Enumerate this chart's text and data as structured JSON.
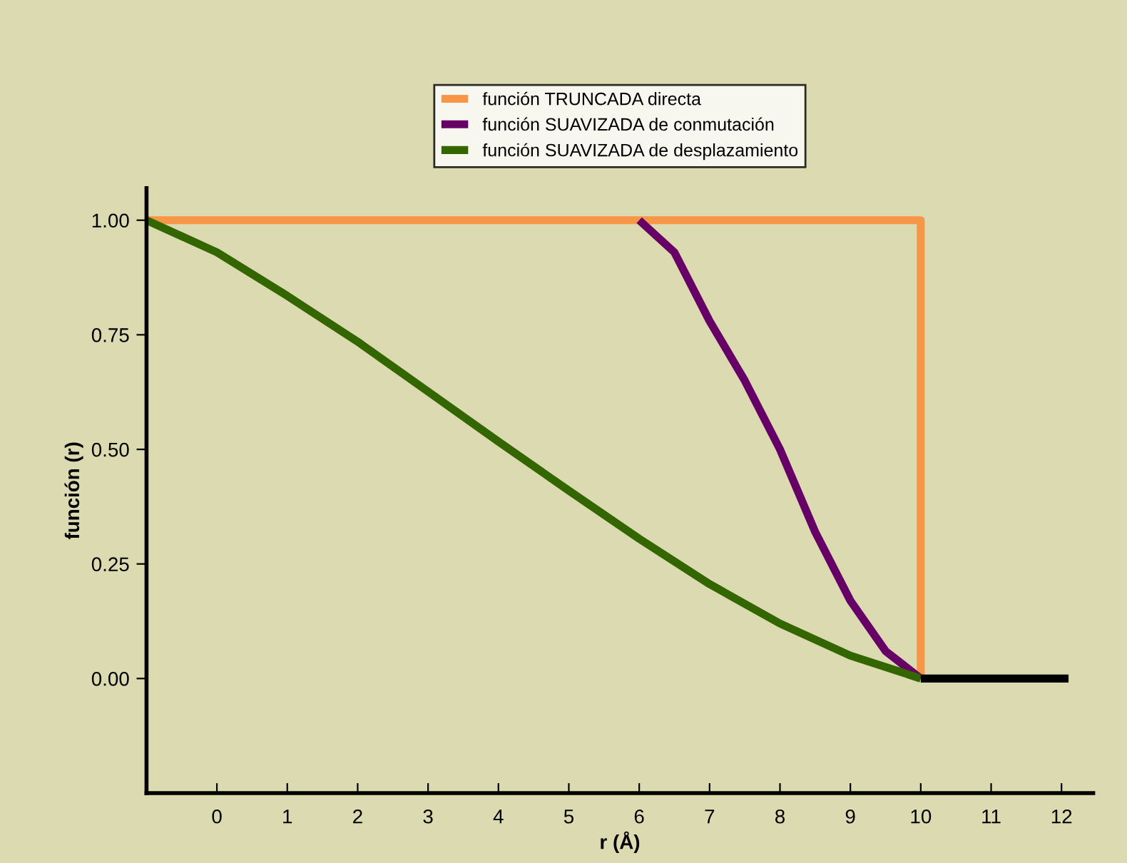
{
  "chart_data": {
    "type": "line",
    "xlabel": "r (Å)",
    "ylabel": "función (r)",
    "xlim": [
      -1,
      12.45
    ],
    "ylim": [
      -0.25,
      1.07
    ],
    "xticks": [
      0,
      1,
      2,
      3,
      4,
      5,
      6,
      7,
      8,
      9,
      10,
      11,
      12
    ],
    "yticks": [
      {
        "value": 0,
        "label": "0.00"
      },
      {
        "value": 0.25,
        "label": "0.25"
      },
      {
        "value": 0.5,
        "label": "0.50"
      },
      {
        "value": 0.75,
        "label": "0.75"
      },
      {
        "value": 1,
        "label": "1.00"
      }
    ],
    "grid": false,
    "legend": "top",
    "marker": "none",
    "line_style": "solid",
    "series": [
      {
        "name": "función TRUNCADA directa",
        "color": "#f79646",
        "x": [
          -1,
          10,
          10
        ],
        "values": [
          1,
          1,
          0
        ]
      },
      {
        "name": "función SUAVIZADA de conmutación",
        "color": "#660066",
        "x": [
          6,
          6.5,
          7,
          7.5,
          8,
          8.5,
          9,
          9.5,
          10
        ],
        "values": [
          1,
          0.93,
          0.78,
          0.65,
          0.5,
          0.32,
          0.17,
          0.06,
          0
        ]
      },
      {
        "name": "función SUAVIZADA de desplazamiento",
        "color": "#336600",
        "x": [
          -1,
          0,
          1,
          2,
          3,
          4,
          5,
          6,
          7,
          8,
          9,
          10
        ],
        "values": [
          1,
          0.93,
          0.835,
          0.735,
          0.626,
          0.517,
          0.41,
          0.305,
          0.206,
          0.12,
          0.05,
          0
        ]
      },
      {
        "color": "#000000",
        "x": [
          10,
          12.1
        ],
        "values": [
          0,
          0
        ]
      }
    ]
  }
}
